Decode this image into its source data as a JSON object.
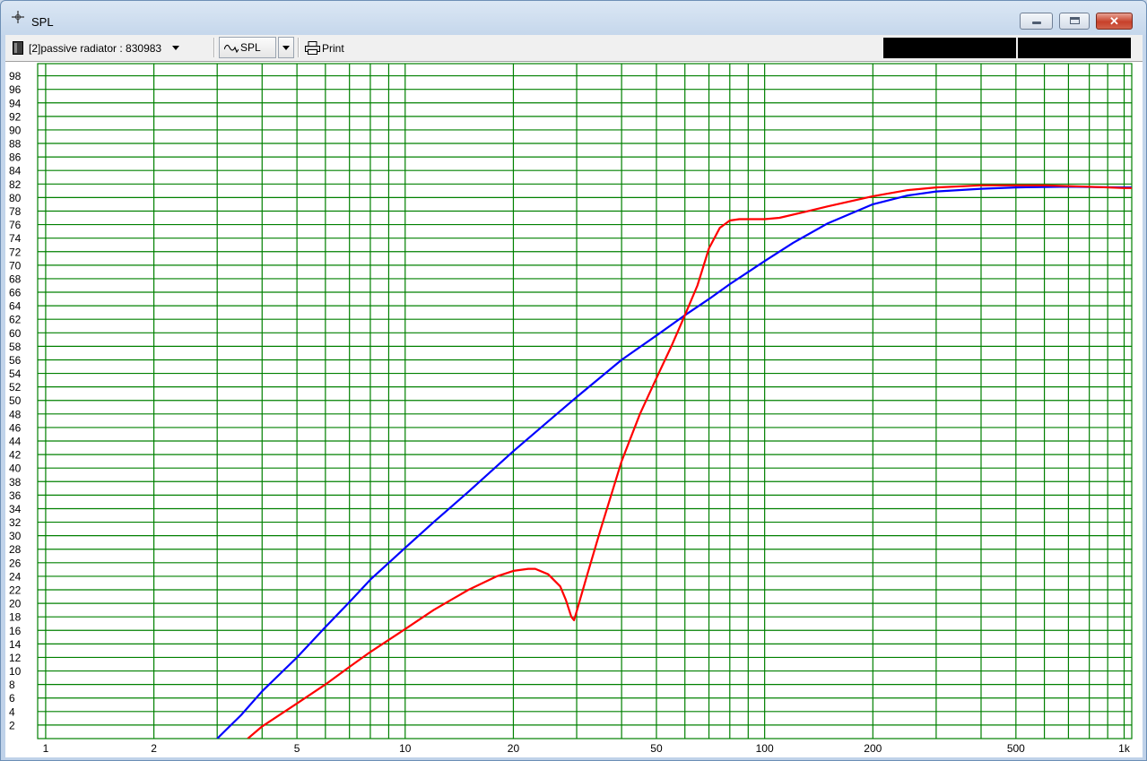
{
  "window": {
    "title": "SPL",
    "title_icon": "crosshair-icon",
    "controls": [
      "minimize-icon",
      "maximize-icon",
      "close-icon"
    ]
  },
  "toolbar": {
    "project_icon": "document-icon",
    "project_label": "[2]passive radiator : 830983",
    "spl_icon": "waveform-icon",
    "spl_label": "SPL",
    "print_icon": "printer-icon",
    "print_label": "Print"
  },
  "colors": {
    "grid": "#008000",
    "series_blue": "#0000ff",
    "series_red": "#ff0000"
  },
  "chart_data": {
    "type": "line",
    "title": "",
    "xlabel": "",
    "ylabel": "",
    "x_scale": "log",
    "xlim": [
      0.95,
      1050
    ],
    "ylim": [
      0,
      99.8
    ],
    "grid": true,
    "legend": "none",
    "x_ticks": [
      1,
      2,
      5,
      10,
      20,
      50,
      100,
      200,
      500,
      1000
    ],
    "x_tick_labels": [
      "1",
      "2",
      "5",
      "10",
      "20",
      "50",
      "100",
      "200",
      "500",
      "1k"
    ],
    "y_ticks": [
      2,
      4,
      6,
      8,
      10,
      12,
      14,
      16,
      18,
      20,
      22,
      24,
      26,
      28,
      30,
      32,
      34,
      36,
      38,
      40,
      42,
      44,
      46,
      48,
      50,
      52,
      54,
      56,
      58,
      60,
      62,
      64,
      66,
      68,
      70,
      72,
      74,
      76,
      78,
      80,
      82,
      84,
      86,
      88,
      90,
      92,
      94,
      96,
      98
    ],
    "series": [
      {
        "color": "#0000ff",
        "points": [
          [
            3,
            0
          ],
          [
            3.5,
            3.5
          ],
          [
            4,
            7
          ],
          [
            5,
            12
          ],
          [
            6,
            16.5
          ],
          [
            7,
            20.2
          ],
          [
            8,
            23.5
          ],
          [
            10,
            28.2
          ],
          [
            12,
            32
          ],
          [
            15,
            36.5
          ],
          [
            20,
            42.5
          ],
          [
            25,
            46.9
          ],
          [
            30,
            50.5
          ],
          [
            40,
            56
          ],
          [
            50,
            59.6
          ],
          [
            60,
            62.6
          ],
          [
            70,
            65
          ],
          [
            80,
            67.2
          ],
          [
            90,
            69
          ],
          [
            100,
            70.6
          ],
          [
            120,
            73.3
          ],
          [
            150,
            76.2
          ],
          [
            200,
            79
          ],
          [
            250,
            80.3
          ],
          [
            300,
            80.9
          ],
          [
            400,
            81.3
          ],
          [
            500,
            81.5
          ],
          [
            700,
            81.6
          ],
          [
            1000,
            81.5
          ],
          [
            1050,
            81.5
          ]
        ]
      },
      {
        "color": "#ff0000",
        "points": [
          [
            3.65,
            0
          ],
          [
            4,
            1.8
          ],
          [
            5,
            5.2
          ],
          [
            6,
            8
          ],
          [
            7,
            10.6
          ],
          [
            8,
            12.8
          ],
          [
            10,
            16.2
          ],
          [
            12,
            19
          ],
          [
            15,
            22
          ],
          [
            18,
            24
          ],
          [
            20,
            24.8
          ],
          [
            22,
            25.1
          ],
          [
            23,
            25.1
          ],
          [
            25,
            24.3
          ],
          [
            27,
            22.5
          ],
          [
            28,
            20.5
          ],
          [
            29,
            18
          ],
          [
            29.5,
            17.5
          ],
          [
            30,
            18.8
          ],
          [
            32,
            24
          ],
          [
            35,
            31
          ],
          [
            40,
            41
          ],
          [
            45,
            48
          ],
          [
            50,
            53.3
          ],
          [
            55,
            58
          ],
          [
            60,
            62.6
          ],
          [
            65,
            67
          ],
          [
            70,
            72.5
          ],
          [
            75,
            75.5
          ],
          [
            80,
            76.6
          ],
          [
            85,
            76.8
          ],
          [
            90,
            76.8
          ],
          [
            100,
            76.8
          ],
          [
            110,
            77
          ],
          [
            130,
            77.9
          ],
          [
            150,
            78.7
          ],
          [
            200,
            80.2
          ],
          [
            250,
            81.1
          ],
          [
            300,
            81.5
          ],
          [
            400,
            81.8
          ],
          [
            600,
            81.8
          ],
          [
            800,
            81.6
          ],
          [
            1000,
            81.4
          ],
          [
            1050,
            81.4
          ]
        ]
      }
    ]
  }
}
